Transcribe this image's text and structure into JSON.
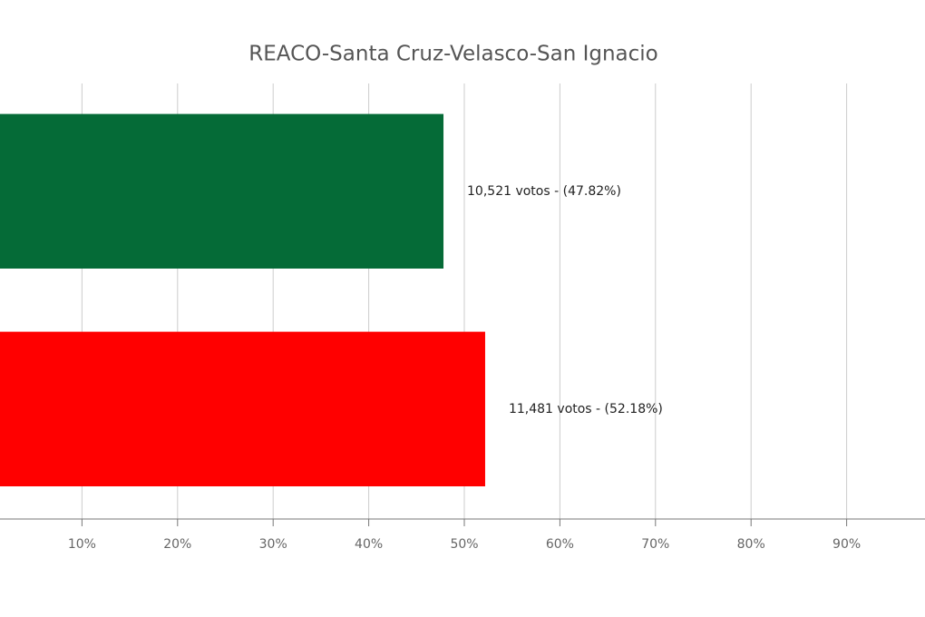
{
  "chart_data": {
    "type": "hbar",
    "title": "REACO-Santa Cruz-Velasco-San Ignacio",
    "series": [
      {
        "color": "#056b37",
        "values": [
          47.82
        ],
        "value_labels": [
          "10,521 votos - (47.82%)"
        ]
      },
      {
        "color": "#ff0000",
        "values": [
          52.18
        ],
        "value_labels": [
          "11,481 votos - (52.18%)"
        ]
      }
    ],
    "xlim": [
      0,
      100
    ],
    "xticks": [
      {
        "value": 10,
        "label": "10%"
      },
      {
        "value": 20,
        "label": "20%"
      },
      {
        "value": 30,
        "label": "30%"
      },
      {
        "value": 40,
        "label": "40%"
      },
      {
        "value": 50,
        "label": "50%"
      },
      {
        "value": 60,
        "label": "60%"
      },
      {
        "value": 70,
        "label": "70%"
      },
      {
        "value": 80,
        "label": "80%"
      },
      {
        "value": 90,
        "label": "90%"
      }
    ],
    "grid": true
  }
}
